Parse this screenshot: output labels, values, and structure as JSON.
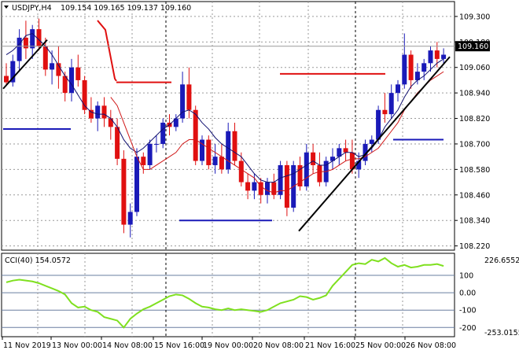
{
  "header": {
    "symbol": "USDJPY,H4",
    "ohlc": "109.154 109.165 109.137 109.160"
  },
  "indicator": {
    "label": "CCI(40) 154.0572",
    "max_label": "226.6552",
    "min_label": "-253.0155",
    "levels": [
      {
        "value": 100,
        "label": "100"
      },
      {
        "value": 0,
        "label": "0.00"
      },
      {
        "value": -100,
        "label": "-100"
      },
      {
        "value": -200,
        "label": "-200"
      }
    ]
  },
  "colors": {
    "background": "#ffffff",
    "bull_candle": "#1a1ab8",
    "bear_candle": "#e01010",
    "fast_ma": "#101070",
    "slow_ma": "#d01818",
    "cci_line": "#7fe01f",
    "grid": "#9a9a9a",
    "trendline": "#000000",
    "price_marker_bg": "#000000"
  },
  "chart_data": {
    "type": "candlestick",
    "title": "USDJPY,H4",
    "price_axis": {
      "ylim": [
        108.2,
        109.37
      ],
      "ticks": [
        "109.300",
        "109.180",
        "109.060",
        "108.940",
        "108.820",
        "108.700",
        "108.580",
        "108.460",
        "108.340",
        "108.220"
      ],
      "current_price_label": "109.160"
    },
    "time_axis": {
      "ticks": [
        "11 Nov 2019",
        "13 Nov 00:00",
        "14 Nov 08:00",
        "15 Nov 16:00",
        "19 Nov 00:00",
        "20 Nov 08:00",
        "21 Nov 16:00",
        "25 Nov 00:00",
        "26 Nov 08:00"
      ],
      "dashed_separators": [
        211,
        452
      ]
    },
    "candles": [
      [
        109.02,
        109.08,
        108.98,
        108.99
      ],
      [
        108.99,
        109.12,
        108.97,
        109.09
      ],
      [
        109.09,
        109.24,
        109.04,
        109.2
      ],
      [
        109.2,
        109.28,
        109.1,
        109.15
      ],
      [
        109.15,
        109.26,
        109.1,
        109.24
      ],
      [
        109.24,
        109.29,
        109.14,
        109.16
      ],
      [
        109.16,
        109.2,
        109.02,
        109.05
      ],
      [
        109.05,
        109.14,
        108.98,
        109.08
      ],
      [
        109.08,
        109.16,
        108.96,
        109.02
      ],
      [
        109.02,
        109.04,
        108.9,
        108.94
      ],
      [
        108.94,
        109.1,
        108.9,
        109.06
      ],
      [
        109.06,
        109.12,
        108.97,
        109.0
      ],
      [
        109.0,
        109.02,
        108.84,
        108.86
      ],
      [
        108.86,
        108.92,
        108.8,
        108.82
      ],
      [
        108.82,
        108.9,
        108.76,
        108.88
      ],
      [
        108.88,
        108.92,
        108.78,
        108.82
      ],
      [
        108.82,
        108.86,
        108.72,
        108.78
      ],
      [
        108.78,
        108.82,
        108.6,
        108.63
      ],
      [
        108.63,
        108.67,
        108.28,
        108.32
      ],
      [
        108.32,
        108.42,
        108.26,
        108.38
      ],
      [
        108.38,
        108.68,
        108.36,
        108.64
      ],
      [
        108.64,
        108.66,
        108.56,
        108.6
      ],
      [
        108.6,
        108.72,
        108.58,
        108.7
      ],
      [
        108.7,
        108.74,
        108.66,
        108.7
      ],
      [
        108.7,
        108.82,
        108.68,
        108.8
      ],
      [
        108.8,
        108.84,
        108.74,
        108.78
      ],
      [
        108.78,
        108.84,
        108.76,
        108.82
      ],
      [
        108.82,
        109.04,
        108.8,
        108.98
      ],
      [
        108.98,
        109.06,
        108.82,
        108.86
      ],
      [
        108.86,
        108.88,
        108.6,
        108.62
      ],
      [
        108.62,
        108.74,
        108.6,
        108.72
      ],
      [
        108.72,
        108.74,
        108.58,
        108.6
      ],
      [
        108.6,
        108.7,
        108.56,
        108.64
      ],
      [
        108.64,
        108.7,
        108.56,
        108.58
      ],
      [
        108.58,
        108.8,
        108.56,
        108.76
      ],
      [
        108.76,
        108.8,
        108.6,
        108.62
      ],
      [
        108.62,
        108.66,
        108.5,
        108.52
      ],
      [
        108.52,
        108.56,
        108.44,
        108.48
      ],
      [
        108.48,
        108.56,
        108.44,
        108.52
      ],
      [
        108.52,
        108.54,
        108.42,
        108.46
      ],
      [
        108.46,
        108.54,
        108.42,
        108.52
      ],
      [
        108.52,
        108.56,
        108.44,
        108.46
      ],
      [
        108.46,
        108.62,
        108.44,
        108.6
      ],
      [
        108.6,
        108.62,
        108.36,
        108.4
      ],
      [
        108.4,
        108.62,
        108.38,
        108.6
      ],
      [
        108.6,
        108.64,
        108.48,
        108.5
      ],
      [
        108.5,
        108.7,
        108.48,
        108.66
      ],
      [
        108.66,
        108.7,
        108.56,
        108.6
      ],
      [
        108.6,
        108.66,
        108.5,
        108.52
      ],
      [
        108.52,
        108.64,
        108.5,
        108.62
      ],
      [
        108.62,
        108.68,
        108.58,
        108.64
      ],
      [
        108.64,
        108.7,
        108.6,
        108.68
      ],
      [
        108.68,
        108.72,
        108.62,
        108.66
      ],
      [
        108.66,
        108.72,
        108.56,
        108.58
      ],
      [
        108.58,
        108.66,
        108.54,
        108.62
      ],
      [
        108.62,
        108.72,
        108.6,
        108.7
      ],
      [
        108.7,
        108.74,
        108.66,
        108.72
      ],
      [
        108.72,
        108.88,
        108.7,
        108.86
      ],
      [
        108.86,
        108.94,
        108.8,
        108.84
      ],
      [
        108.84,
        108.98,
        108.82,
        108.94
      ],
      [
        108.94,
        109.0,
        108.9,
        108.98
      ],
      [
        108.98,
        109.22,
        108.96,
        109.12
      ],
      [
        109.12,
        109.14,
        108.96,
        109.0
      ],
      [
        109.0,
        109.08,
        108.98,
        109.04
      ],
      [
        109.04,
        109.1,
        109.0,
        109.08
      ],
      [
        109.08,
        109.16,
        109.04,
        109.14
      ],
      [
        109.14,
        109.18,
        109.06,
        109.1
      ],
      [
        109.1,
        109.15,
        109.08,
        109.12
      ]
    ],
    "fast_ma": [
      109.12,
      109.14,
      109.17,
      109.21,
      109.22,
      109.19,
      109.16,
      109.12,
      109.07,
      109.02,
      108.98,
      108.93,
      108.88,
      108.85,
      108.84,
      108.84,
      108.82,
      108.78,
      108.72,
      108.68,
      108.66,
      108.68,
      108.71,
      108.74,
      108.77,
      108.79,
      108.82,
      108.85,
      108.86,
      108.84,
      108.8,
      108.77,
      108.73,
      108.7,
      108.68,
      108.66,
      108.64,
      108.6,
      108.56,
      108.53,
      108.52,
      108.52,
      108.54,
      108.55,
      108.56,
      108.58,
      108.6,
      108.62,
      108.6,
      108.6,
      108.62,
      108.64,
      108.66,
      108.66,
      108.64,
      108.65,
      108.68,
      108.72,
      108.78,
      108.82,
      108.86,
      108.92,
      108.97,
      109.0,
      109.02,
      109.05,
      109.08,
      109.1
    ],
    "slow_ma": [
      null,
      null,
      null,
      null,
      null,
      null,
      null,
      null,
      null,
      null,
      null,
      null,
      null,
      null,
      null,
      null,
      108.92,
      108.88,
      108.8,
      108.72,
      108.64,
      108.58,
      108.58,
      108.6,
      108.62,
      108.64,
      108.66,
      108.7,
      108.72,
      108.72,
      108.7,
      108.68,
      108.66,
      108.64,
      108.62,
      108.6,
      108.58,
      108.56,
      108.54,
      108.5,
      108.48,
      108.47,
      108.48,
      108.48,
      108.5,
      108.52,
      108.54,
      108.56,
      108.57,
      108.57,
      108.58,
      108.6,
      108.62,
      108.63,
      108.63,
      108.64,
      108.66,
      108.68,
      108.72,
      108.76,
      108.8,
      108.86,
      108.9,
      108.94,
      108.97,
      109.0,
      109.02,
      109.04
    ],
    "cci": [
      60,
      70,
      75,
      70,
      65,
      55,
      40,
      25,
      10,
      -10,
      -60,
      -85,
      -80,
      -100,
      -110,
      -140,
      -150,
      -160,
      -200,
      -150,
      -120,
      -95,
      -80,
      -60,
      -40,
      -20,
      -10,
      -15,
      -35,
      -60,
      -80,
      -85,
      -95,
      -100,
      -90,
      -100,
      -95,
      -100,
      -105,
      -110,
      -100,
      -80,
      -60,
      -50,
      -40,
      -20,
      -25,
      -40,
      -30,
      -15,
      40,
      80,
      120,
      160,
      170,
      165,
      190,
      180,
      200,
      170,
      150,
      160,
      145,
      150,
      160,
      160,
      165,
      154
    ],
    "horizontal_levels": [
      {
        "price": 108.77,
        "color": "blue"
      },
      {
        "price": 108.99,
        "color": "red"
      },
      {
        "price": 108.34,
        "color": "blue"
      },
      {
        "price": 109.03,
        "color": "red"
      },
      {
        "price": 108.72,
        "color": "blue"
      }
    ],
    "trendlines": [
      {
        "p1": [
          108.96,
          "11 Nov"
        ],
        "p2": [
          109.19,
          "12 Nov"
        ]
      },
      {
        "p1": [
          108.29,
          "20 Nov"
        ],
        "p2": [
          109.11,
          "26 Nov"
        ]
      }
    ]
  }
}
